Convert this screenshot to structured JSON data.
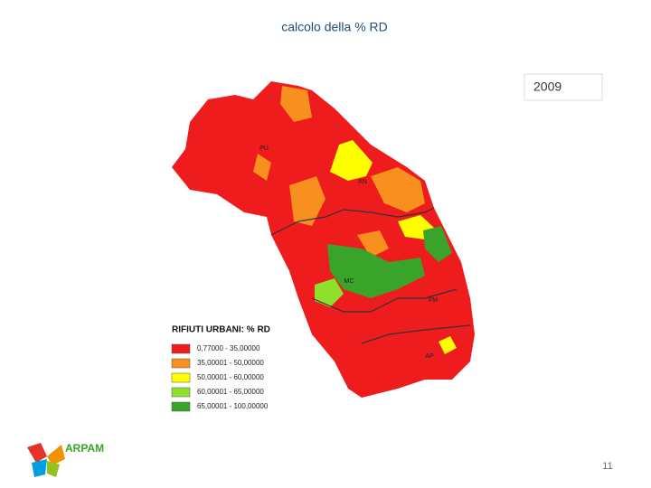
{
  "header": {
    "title": "calcolo della % RD",
    "year": "2009"
  },
  "map": {
    "province_labels": [
      "PU",
      "AN",
      "MC",
      "FM",
      "AP"
    ],
    "legend": {
      "title": "RIFIUTI URBANI: % RD",
      "items": [
        {
          "label": "0,77000 - 35,00000",
          "color": "#ee1c1c"
        },
        {
          "label": "35,00001 - 50,00000",
          "color": "#f7901e"
        },
        {
          "label": "50,00001 - 60,00000",
          "color": "#ffff00"
        },
        {
          "label": "60,00001 - 65,00000",
          "color": "#8fe02c"
        },
        {
          "label": "65,00001 - 100,00000",
          "color": "#3aa32a"
        }
      ]
    }
  },
  "footer": {
    "logo": "ARPAM",
    "page_number": "11"
  }
}
